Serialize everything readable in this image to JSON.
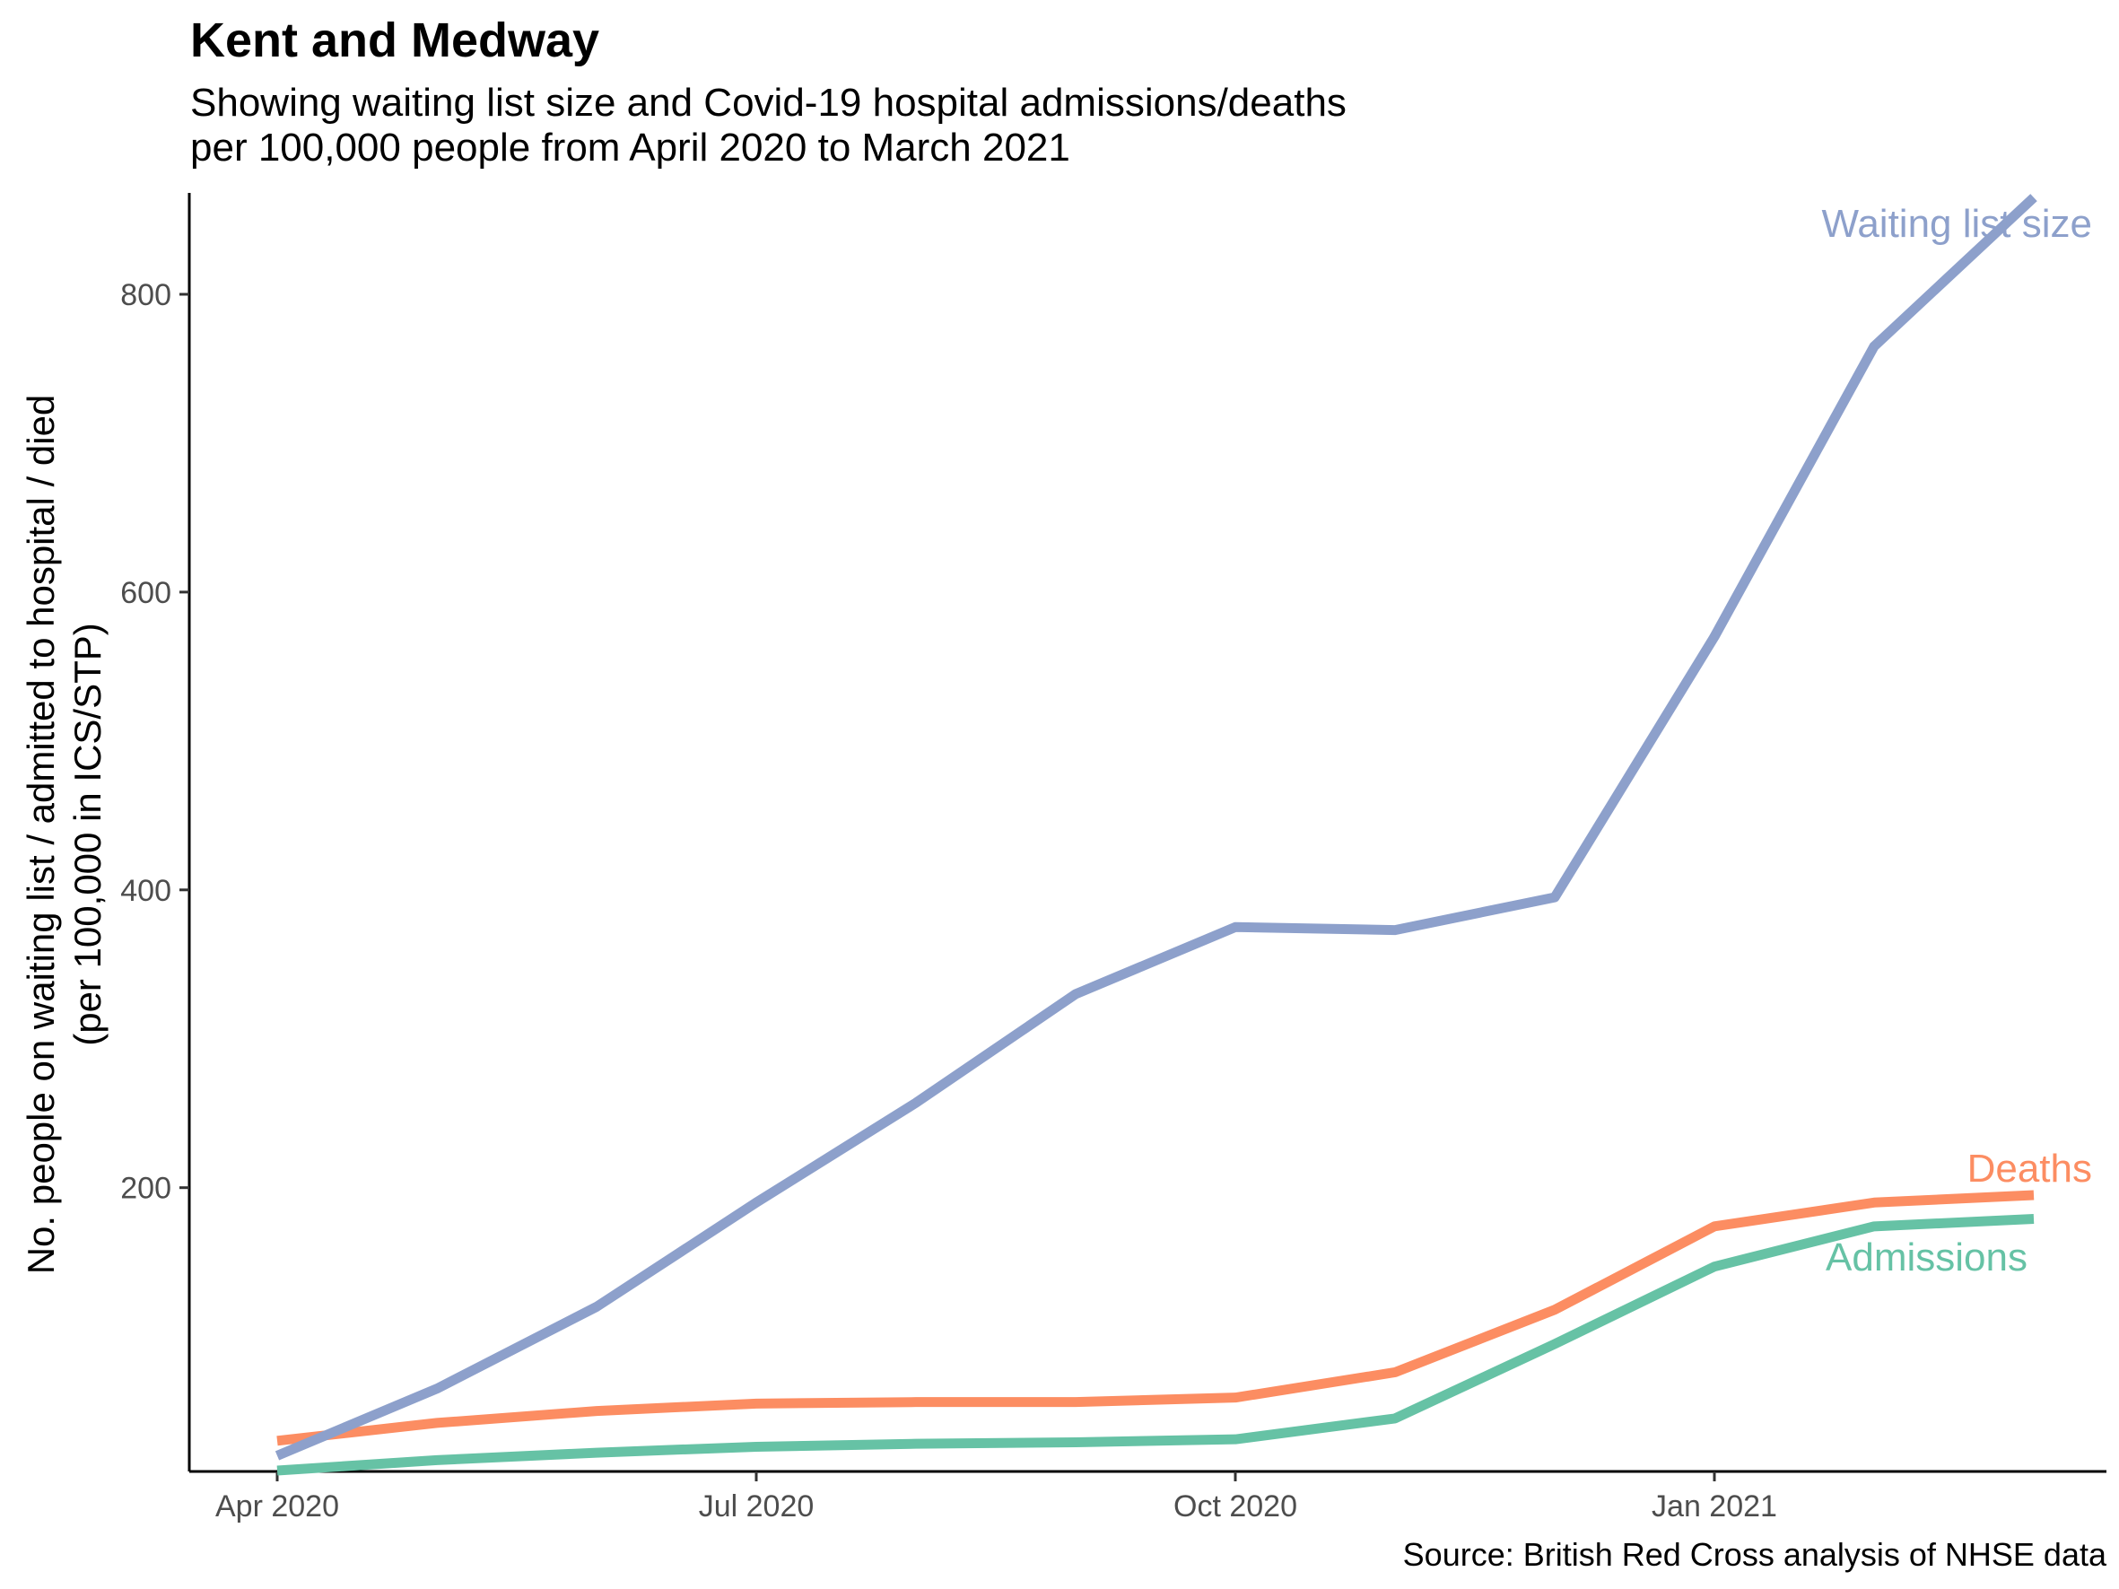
{
  "chart_data": {
    "type": "line",
    "title": "Kent and Medway",
    "subtitle": [
      "Showing waiting list size and Covid-19 hospital admissions/deaths",
      "per 100,000 people from April 2020 to March 2021"
    ],
    "xlabel": "",
    "ylabel": [
      "No. people on waiting list / admitted to hospital / died",
      "(per 100,000 in ICS/STP)"
    ],
    "caption": "Source: British Red Cross analysis of NHSE data",
    "x": [
      "2020-04",
      "2020-05",
      "2020-06",
      "2020-07",
      "2020-08",
      "2020-09",
      "2020-10",
      "2020-11",
      "2020-12",
      "2021-01",
      "2021-02",
      "2021-03"
    ],
    "xticks": [
      {
        "label": "Apr 2020",
        "index": 0
      },
      {
        "label": "Jul 2020",
        "index": 3
      },
      {
        "label": "Oct 2020",
        "index": 6
      },
      {
        "label": "Jan 2021",
        "index": 9
      }
    ],
    "yticks": [
      200,
      400,
      600,
      800
    ],
    "ylim": [
      10,
      865
    ],
    "grid": false,
    "legend": "direct labels at line ends",
    "series": [
      {
        "name": "Waiting list size",
        "color": "#8DA0CB",
        "values": [
          20,
          65,
          120,
          190,
          257,
          330,
          375,
          373,
          395,
          570,
          765,
          865
        ]
      },
      {
        "name": "Deaths",
        "color": "#FC8D62",
        "values": [
          30,
          42,
          50,
          55,
          56,
          56,
          59,
          76,
          118,
          174,
          190,
          195
        ]
      },
      {
        "name": "Admissions",
        "color": "#66C2A5",
        "values": [
          10,
          17,
          22,
          26,
          28,
          29,
          31,
          45,
          95,
          147,
          174,
          179
        ]
      }
    ]
  }
}
